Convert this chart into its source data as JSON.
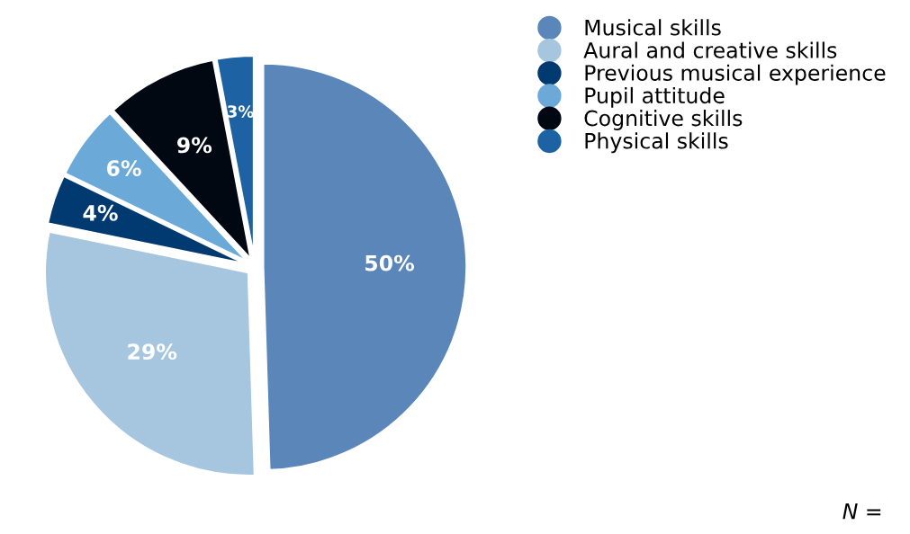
{
  "chart_data": {
    "type": "pie",
    "categories": [
      "Musical skills",
      "Aural and creative skills",
      "Previous musical experience",
      "Pupil attitude",
      "Cognitive skills",
      "Physical skills"
    ],
    "values": [
      50,
      29,
      4,
      6,
      9,
      3
    ],
    "colors": [
      "#5b86b9",
      "#a6c6e0",
      "#003a70",
      "#6aa9d8",
      "#020812",
      "#1d63a3"
    ],
    "value_labels": [
      "50%",
      "29%",
      "4%",
      "6%",
      "9%",
      "3%"
    ],
    "legend": "top right",
    "annotations": [
      "N ="
    ]
  }
}
